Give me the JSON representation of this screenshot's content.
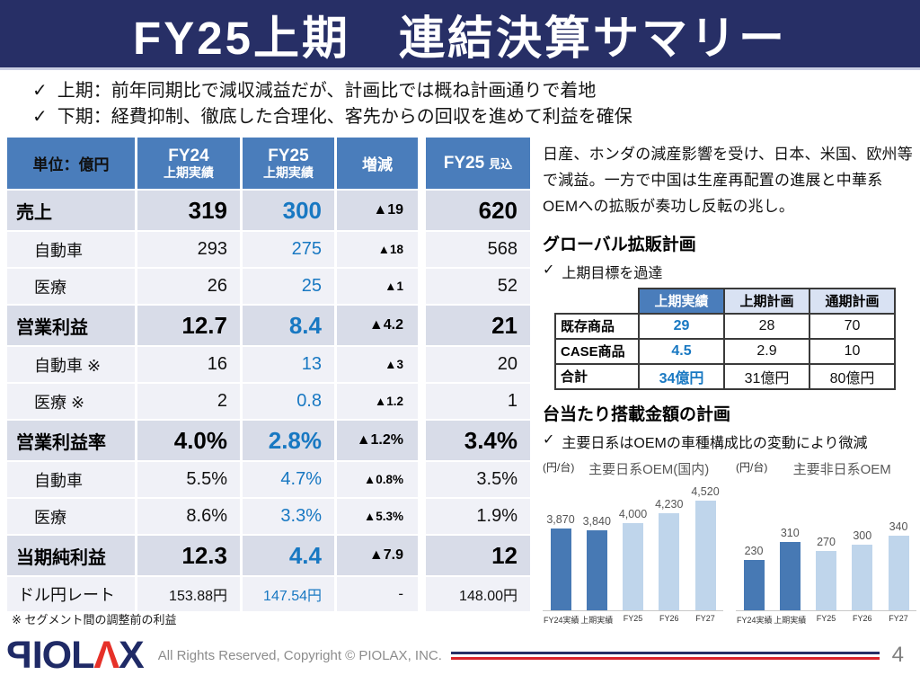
{
  "icons": {
    "check": "✓"
  },
  "title": "FY25上期　連結決算サマリー",
  "bullets": [
    "上期：前年同期比で減収減益だが、計画比では概ね計画通りで着地",
    "下期：経費抑制、徹底した合理化、客先からの回収を進めて利益を確保"
  ],
  "main_table": {
    "unit_header": "単位：億円",
    "columns": [
      {
        "line1": "FY24",
        "line2": "上期実績",
        "layout": "stacked"
      },
      {
        "line1": "FY25",
        "line2": "上期実績",
        "layout": "stacked"
      },
      {
        "line1": "増減",
        "line2": "",
        "layout": "single"
      },
      {
        "line1": "FY25",
        "line2": "見込",
        "layout": "inline"
      }
    ],
    "rows": [
      {
        "label": "売上",
        "fy24": "319",
        "fy25": "300",
        "delta": "▲19",
        "forecast": "620",
        "style": "bold"
      },
      {
        "label": "自動車",
        "fy24": "293",
        "fy25": "275",
        "delta": "▲18",
        "forecast": "568",
        "style": "sub"
      },
      {
        "label": "医療",
        "fy24": "26",
        "fy25": "25",
        "delta": "▲1",
        "forecast": "52",
        "style": "sub"
      },
      {
        "label": "営業利益",
        "fy24": "12.7",
        "fy25": "8.4",
        "delta": "▲4.2",
        "forecast": "21",
        "style": "bold"
      },
      {
        "label": "自動車 ※",
        "fy24": "16",
        "fy25": "13",
        "delta": "▲3",
        "forecast": "20",
        "style": "sub"
      },
      {
        "label": "医療 ※",
        "fy24": "2",
        "fy25": "0.8",
        "delta": "▲1.2",
        "forecast": "1",
        "style": "sub"
      },
      {
        "label": "営業利益率",
        "fy24": "4.0%",
        "fy25": "2.8%",
        "delta": "▲1.2%",
        "forecast": "3.4%",
        "style": "bold"
      },
      {
        "label": "自動車",
        "fy24": "5.5%",
        "fy25": "4.7%",
        "delta": "▲0.8%",
        "forecast": "3.5%",
        "style": "sub"
      },
      {
        "label": "医療",
        "fy24": "8.6%",
        "fy25": "3.3%",
        "delta": "▲5.3%",
        "forecast": "1.9%",
        "style": "sub"
      },
      {
        "label": "当期純利益",
        "fy24": "12.3",
        "fy25": "4.4",
        "delta": "▲7.9",
        "forecast": "12",
        "style": "bold"
      },
      {
        "label": "ドル円レート",
        "fy24": "153.88円",
        "fy25": "147.54円",
        "delta": "-",
        "forecast": "148.00円",
        "style": "small"
      }
    ],
    "footnote": "※ セグメント間の調整前の利益"
  },
  "right_panel": {
    "summary": "日産、ホンダの減産影響を受け、日本、米国、欧州等で減益。一方で中国は生産再配置の進展と中華系OEMへの拡販が奏功し反転の兆し。",
    "expansion_heading": "グローバル拡販計画",
    "expansion_bullet": "上期目標を過達",
    "expansion_table": {
      "headers": [
        "上期実績",
        "上期計画",
        "通期計画"
      ],
      "rows": [
        {
          "label": "既存商品",
          "actual": "29",
          "plan": "28",
          "full_year": "70"
        },
        {
          "label": "CASE商品",
          "actual": "4.5",
          "plan": "2.9",
          "full_year": "10"
        },
        {
          "label": "合計",
          "actual": "34億円",
          "plan": "31億円",
          "full_year": "80億円"
        }
      ]
    },
    "per_vehicle_heading": "台当たり搭載金額の計画",
    "per_vehicle_bullet": "主要日系はOEMの車種構成比の変動により微減"
  },
  "chart_data": [
    {
      "type": "bar",
      "title": "主要日系OEM(国内)",
      "unit_label": "(円/台)",
      "categories": [
        "FY24実績",
        "上期実績",
        "FY25",
        "FY26",
        "FY27"
      ],
      "values": [
        3870,
        3840,
        4000,
        4230,
        4520
      ],
      "value_labels": [
        "3,870",
        "3,840",
        "4,000",
        "4,230",
        "4,520"
      ],
      "bar_types": [
        "actual",
        "actual",
        "plan",
        "plan",
        "plan"
      ],
      "axis_baseline": 2000,
      "palette": {
        "actual": "#4779B4",
        "plan": "#BFD5EB"
      }
    },
    {
      "type": "bar",
      "title": "主要非日系OEM",
      "unit_label": "(円/台)",
      "categories": [
        "FY24実績",
        "上期実績",
        "FY25",
        "FY26",
        "FY27"
      ],
      "values": [
        230,
        310,
        270,
        300,
        340
      ],
      "value_labels": [
        "230",
        "310",
        "270",
        "300",
        "340"
      ],
      "bar_types": [
        "actual",
        "actual",
        "plan",
        "plan",
        "plan"
      ],
      "axis_baseline": 0,
      "palette": {
        "actual": "#4779B4",
        "plan": "#BFD5EB"
      }
    }
  ],
  "footer": {
    "logo": {
      "p": "P",
      "iol": "IOL",
      "caret": "Λ",
      "x": "X"
    },
    "copyright": "All Rights Reserved, Copyright © PIOLAX, INC.",
    "page_number": "4"
  },
  "colors": {
    "title_navy": "#272F66",
    "table_header_blue": "#4A7DBB",
    "accent_blue": "#1878C2",
    "bold_row_bg": "#D8DCE8",
    "sub_row_bg": "#F0F1F7",
    "light_header_bg": "#D9E2F3",
    "bar_dark": "#4779B4",
    "bar_light": "#BFD5EB",
    "footer_red": "#D9242B"
  }
}
